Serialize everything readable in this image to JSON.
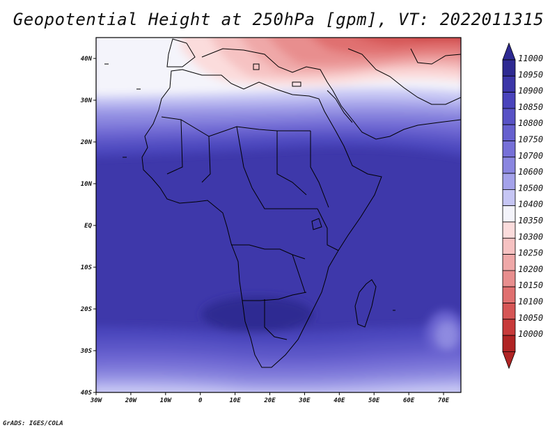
{
  "title": "Geopotential Height at 250hPa [gpm], VT: 2022011315",
  "footer": "GrADS: IGES/COLA",
  "chart_data": {
    "type": "heatmap",
    "variable": "Geopotential Height",
    "level": "250hPa",
    "units": "gpm",
    "valid_time": "2022011315",
    "lon_range": [
      -30,
      75
    ],
    "lat_range": [
      -40,
      45
    ],
    "x_ticks": [
      "30W",
      "20W",
      "10W",
      "0",
      "10E",
      "20E",
      "30E",
      "40E",
      "50E",
      "60E",
      "70E"
    ],
    "y_ticks": [
      "40N",
      "30N",
      "20N",
      "10N",
      "EQ",
      "10S",
      "20S",
      "30S",
      "40S"
    ],
    "colorbar_levels": [
      "11000",
      "10950",
      "10900",
      "10850",
      "10800",
      "10750",
      "10700",
      "10600",
      "10500",
      "10400",
      "10350",
      "10300",
      "10250",
      "10200",
      "10150",
      "10100",
      "10050",
      "10000"
    ],
    "colorbar_colors": [
      "#2e2a92",
      "#3c36a8",
      "#4a44bc",
      "#5852c6",
      "#6660cf",
      "#7670d8",
      "#8a86e0",
      "#a4a2ea",
      "#c6c6f4",
      "#f4f4fb",
      "#fbdcdc",
      "#f6c2c2",
      "#efa8a8",
      "#e88e8e",
      "#e07070",
      "#d65656",
      "#c83a3a",
      "#b02424"
    ]
  }
}
